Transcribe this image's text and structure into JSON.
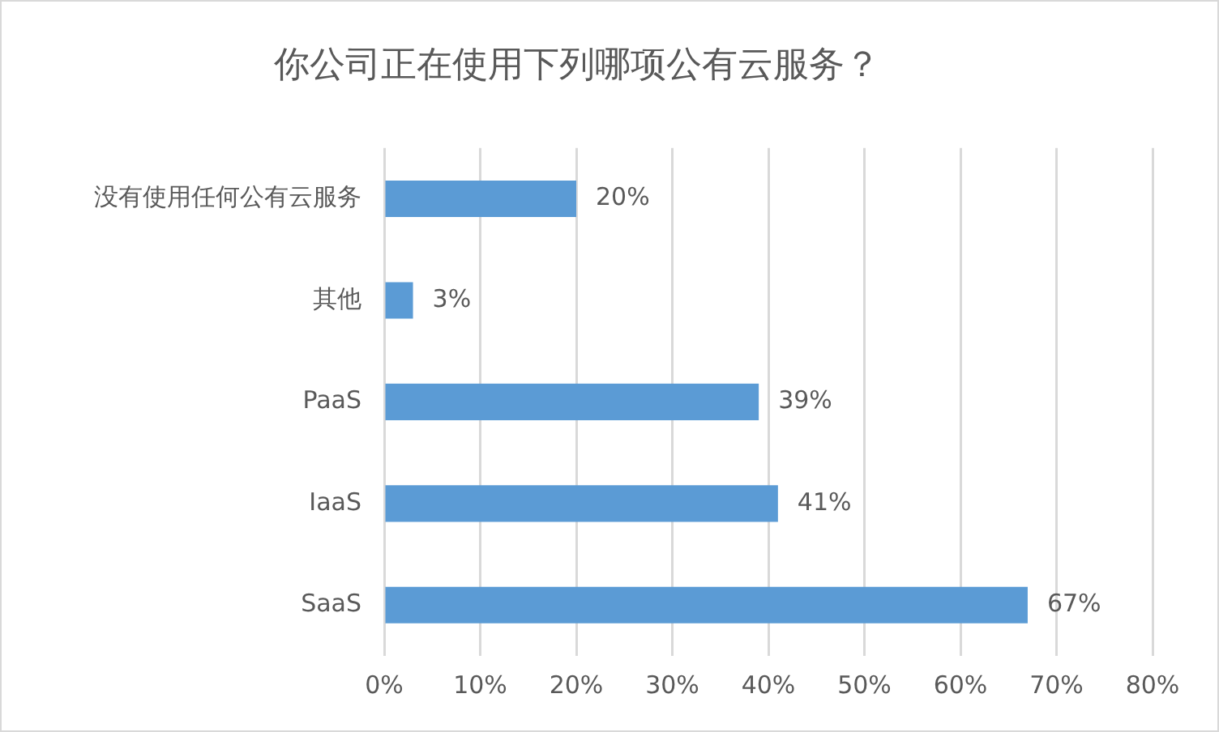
{
  "chart_data": {
    "type": "bar",
    "orientation": "horizontal",
    "title": "你公司正在使用下列哪项公有云服务？",
    "categories": [
      "没有使用任何公有云服务",
      "其他",
      "PaaS",
      "IaaS",
      "SaaS"
    ],
    "values": [
      20,
      3,
      39,
      41,
      67
    ],
    "value_labels": [
      "20%",
      "3%",
      "39%",
      "41%",
      "67%"
    ],
    "color": "#5b9bd5",
    "xlim": [
      0,
      80
    ],
    "xticks": [
      {
        "value": 0,
        "label": "0%"
      },
      {
        "value": 10,
        "label": "10%"
      },
      {
        "value": 20,
        "label": "20%"
      },
      {
        "value": 30,
        "label": "30%"
      },
      {
        "value": 40,
        "label": "40%"
      },
      {
        "value": 50,
        "label": "50%"
      },
      {
        "value": 60,
        "label": "60%"
      },
      {
        "value": 70,
        "label": "70%"
      },
      {
        "value": 80,
        "label": "80%"
      }
    ],
    "grid": "x"
  }
}
